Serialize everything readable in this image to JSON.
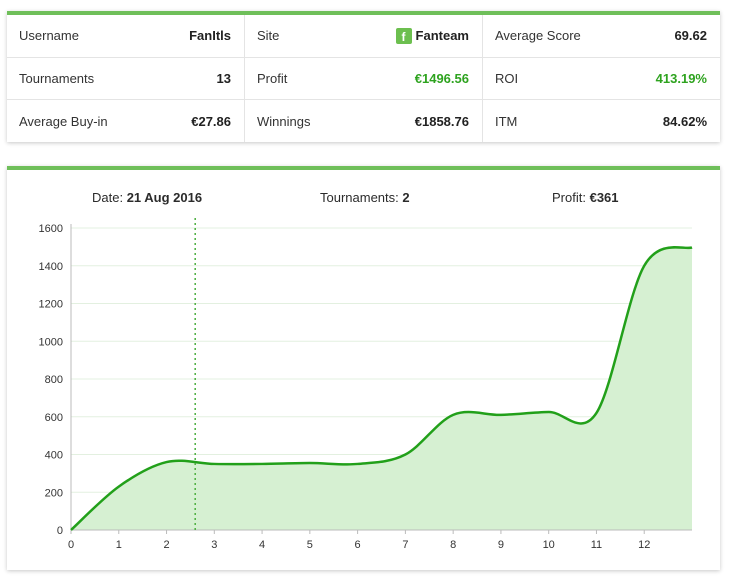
{
  "stats": {
    "col1": [
      {
        "label": "Username",
        "value": "FanItls"
      },
      {
        "label": "Tournaments",
        "value": "13"
      },
      {
        "label": "Average Buy-in",
        "value": "€27.86"
      }
    ],
    "col2": [
      {
        "label": "Site",
        "value": "Fanteam",
        "icon": "fanteam-logo-icon"
      },
      {
        "label": "Profit",
        "value": "€1496.56"
      },
      {
        "label": "Winnings",
        "value": "€1858.76"
      }
    ],
    "col3": [
      {
        "label": "Average Score",
        "value": "69.62"
      },
      {
        "label": "ROI",
        "value": "413.19%"
      },
      {
        "label": "ITM",
        "value": "84.62%"
      }
    ]
  },
  "colors": {
    "accent": "#6fbf5a",
    "positive": "#2ea31f",
    "line": "#22a01a",
    "fill": "#d6f0d2"
  },
  "tooltip": {
    "date_label": "Date:",
    "date_value": "21 Aug 2016",
    "tournaments_label": "Tournaments:",
    "tournaments_value": "2",
    "profit_label": "Profit:",
    "profit_value": "€361"
  },
  "chart_data": {
    "type": "area",
    "title": "",
    "xlabel": "",
    "ylabel": "",
    "x": [
      0,
      1,
      2,
      3,
      4,
      5,
      6,
      7,
      8,
      9,
      10,
      11,
      12,
      13
    ],
    "values": [
      0,
      230,
      360,
      350,
      350,
      355,
      350,
      400,
      610,
      610,
      625,
      620,
      1400,
      1497
    ],
    "xlim": [
      0,
      13
    ],
    "ylim": [
      0,
      1600
    ],
    "xticks": [
      "0",
      "1",
      "2",
      "3",
      "4",
      "5",
      "6",
      "7",
      "8",
      "9",
      "10",
      "11",
      "12"
    ],
    "yticks": [
      "0",
      "200",
      "400",
      "600",
      "800",
      "1000",
      "1200",
      "1400",
      "1600"
    ],
    "hover_x": 2.6,
    "grid": true,
    "legend": "none"
  }
}
